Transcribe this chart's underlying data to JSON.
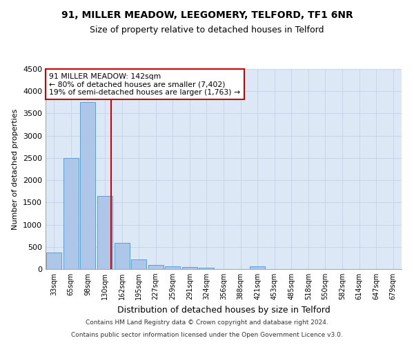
{
  "title1": "91, MILLER MEADOW, LEEGOMERY, TELFORD, TF1 6NR",
  "title2": "Size of property relative to detached houses in Telford",
  "xlabel": "Distribution of detached houses by size in Telford",
  "ylabel": "Number of detached properties",
  "footnote1": "Contains HM Land Registry data © Crown copyright and database right 2024.",
  "footnote2": "Contains public sector information licensed under the Open Government Licence v3.0.",
  "categories": [
    "33sqm",
    "65sqm",
    "98sqm",
    "130sqm",
    "162sqm",
    "195sqm",
    "227sqm",
    "259sqm",
    "291sqm",
    "324sqm",
    "356sqm",
    "388sqm",
    "421sqm",
    "453sqm",
    "485sqm",
    "518sqm",
    "550sqm",
    "582sqm",
    "614sqm",
    "647sqm",
    "679sqm"
  ],
  "values": [
    370,
    2500,
    3750,
    1640,
    590,
    225,
    100,
    60,
    40,
    30,
    0,
    0,
    55,
    0,
    0,
    0,
    0,
    0,
    0,
    0,
    0
  ],
  "bar_color": "#aec6e8",
  "bar_edge_color": "#5a9fd4",
  "ylim": [
    0,
    4500
  ],
  "yticks": [
    0,
    500,
    1000,
    1500,
    2000,
    2500,
    3000,
    3500,
    4000,
    4500
  ],
  "annotation_title": "91 MILLER MEADOW: 142sqm",
  "annotation_line1": "← 80% of detached houses are smaller (7,402)",
  "annotation_line2": "19% of semi-detached houses are larger (1,763) →",
  "annotation_box_color": "#cc0000",
  "grid_color": "#c8d4e8",
  "bg_color": "#dce8f5",
  "title1_fontsize": 10,
  "title2_fontsize": 9,
  "ylabel_fontsize": 8,
  "xlabel_fontsize": 9,
  "tick_fontsize": 7,
  "footnote_fontsize": 6.5
}
